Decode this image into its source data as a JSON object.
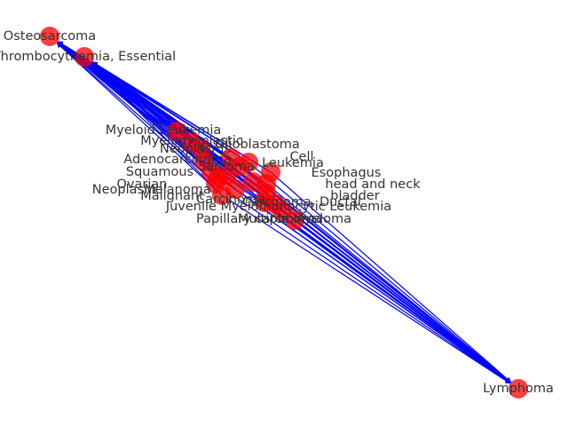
{
  "colors": {
    "node": "#ff0000",
    "edge": "#0000ff",
    "label": "#333333",
    "background": "#ffffff"
  },
  "nodes": [
    {
      "id": "osteosarcoma",
      "label": "Osteosarcoma"
    },
    {
      "id": "thrombocythemia",
      "label": "Thrombocythemia, Essential"
    },
    {
      "id": "myeloid-leukemia",
      "label": "Myeloid Leukemia"
    },
    {
      "id": "myelodysplastic",
      "label": "Myelodysplastic"
    },
    {
      "id": "neoplasms",
      "label": "Neoplasms"
    },
    {
      "id": "lymphoma",
      "label": "Lymphoma"
    },
    {
      "id": "multiple-myeloma",
      "label": "Multiple Myeloma"
    },
    {
      "id": "papillary-carcinoma",
      "label": "Papillary carcinoma"
    },
    {
      "id": "jmml",
      "label": "Juvenile Myelomonocytic Leukemia"
    },
    {
      "id": "head-and-neck",
      "label": "head and neck"
    },
    {
      "id": "bladder",
      "label": "bladder"
    },
    {
      "id": "squamous",
      "label": "Squamous"
    },
    {
      "id": "malignant",
      "label": "Malignant"
    },
    {
      "id": "carcinoma-ductal",
      "label": "Carcinoma, Ductal"
    },
    {
      "id": "ovarian",
      "label": "Ovarian"
    },
    {
      "id": "glioblastoma",
      "label": "Glioblastoma"
    },
    {
      "id": "adenocarcinoma",
      "label": "Adenocarcinoma"
    },
    {
      "id": "esophagus",
      "label": "Esophagus"
    },
    {
      "id": "cell",
      "label": "Cell"
    },
    {
      "id": "leukemia",
      "label": "Leukemia"
    },
    {
      "id": "melanoma",
      "label": "Melanoma"
    },
    {
      "id": "neoplasm",
      "label": "Neoplasm"
    },
    {
      "id": "carcinoma",
      "label": "Carcinoma"
    },
    {
      "id": "sarcoma",
      "label": "Sarcoma"
    }
  ]
}
